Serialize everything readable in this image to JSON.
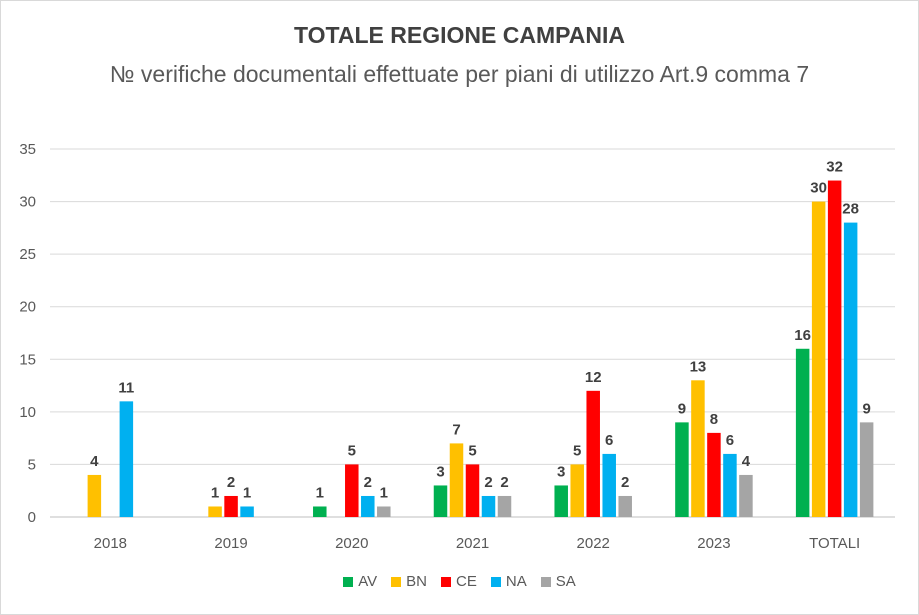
{
  "chart_data": {
    "type": "bar",
    "title": "TOTALE REGIONE CAMPANIA",
    "subtitle": "№ verifiche documentali effettuate per piani di utilizzo Art.9 comma 7",
    "categories": [
      "2018",
      "2019",
      "2020",
      "2021",
      "2022",
      "2023",
      "TOTALI"
    ],
    "series": [
      {
        "name": "AV",
        "color": "#00b050",
        "values": [
          null,
          null,
          1,
          3,
          3,
          9,
          16
        ]
      },
      {
        "name": "BN",
        "color": "#ffc000",
        "values": [
          4,
          1,
          null,
          7,
          5,
          13,
          30
        ]
      },
      {
        "name": "CE",
        "color": "#ff0000",
        "values": [
          null,
          2,
          5,
          5,
          12,
          8,
          32
        ]
      },
      {
        "name": "NA",
        "color": "#00b0f0",
        "values": [
          11,
          1,
          2,
          2,
          6,
          6,
          28
        ]
      },
      {
        "name": "SA",
        "color": "#a5a5a5",
        "values": [
          null,
          null,
          1,
          2,
          2,
          4,
          9
        ]
      }
    ],
    "ylim": [
      0,
      35
    ],
    "yticks": [
      0,
      5,
      10,
      15,
      20,
      25,
      30,
      35
    ],
    "grid": true,
    "legend": "bottom"
  }
}
